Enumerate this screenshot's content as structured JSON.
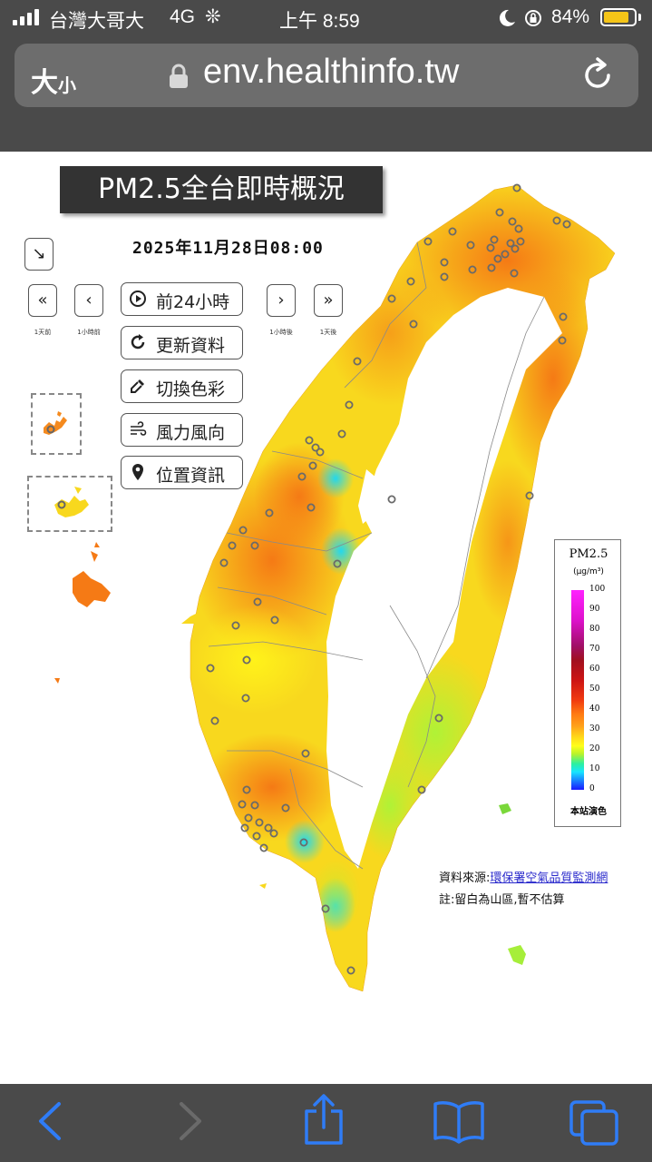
{
  "status": {
    "carrier": "台灣大哥大",
    "network": "4G",
    "time": "上午 8:59",
    "battery": "84%",
    "battery_level": 0.84
  },
  "browser": {
    "text_size_label": "大",
    "text_size_small": "小",
    "url": "env.healthinfo.tw"
  },
  "page": {
    "title": "PM2.5全台即時概況",
    "datetime": "2025年11月28日08:00",
    "nav": {
      "day_back": "1天前",
      "hour_back": "1小時前",
      "hour_fwd": "1小時後",
      "day_fwd": "1天後"
    },
    "controls": {
      "play": "前24小時",
      "refresh": "更新資料",
      "color": "切換色彩",
      "wind": "風力風向",
      "location": "位置資訊"
    },
    "legend": {
      "title": "PM2.5",
      "unit": "(μg/m³)",
      "ticks": [
        "100",
        "90",
        "80",
        "70",
        "60",
        "50",
        "40",
        "30",
        "20",
        "10",
        "0"
      ],
      "footer": "本站演色"
    },
    "source_label": "資料來源:",
    "source_link": "環保署空氣品質監測網",
    "note": "註:留白為山區,暫不估算"
  },
  "colors": {
    "chrome": "#4a4a4a",
    "urlbar": "#6d6d6d",
    "ios_blue": "#2f7cf6",
    "map_orange": "#f7a41e",
    "map_yellow": "#f8d81e",
    "map_green": "#bdf233",
    "map_cyan": "#36e6e6"
  }
}
